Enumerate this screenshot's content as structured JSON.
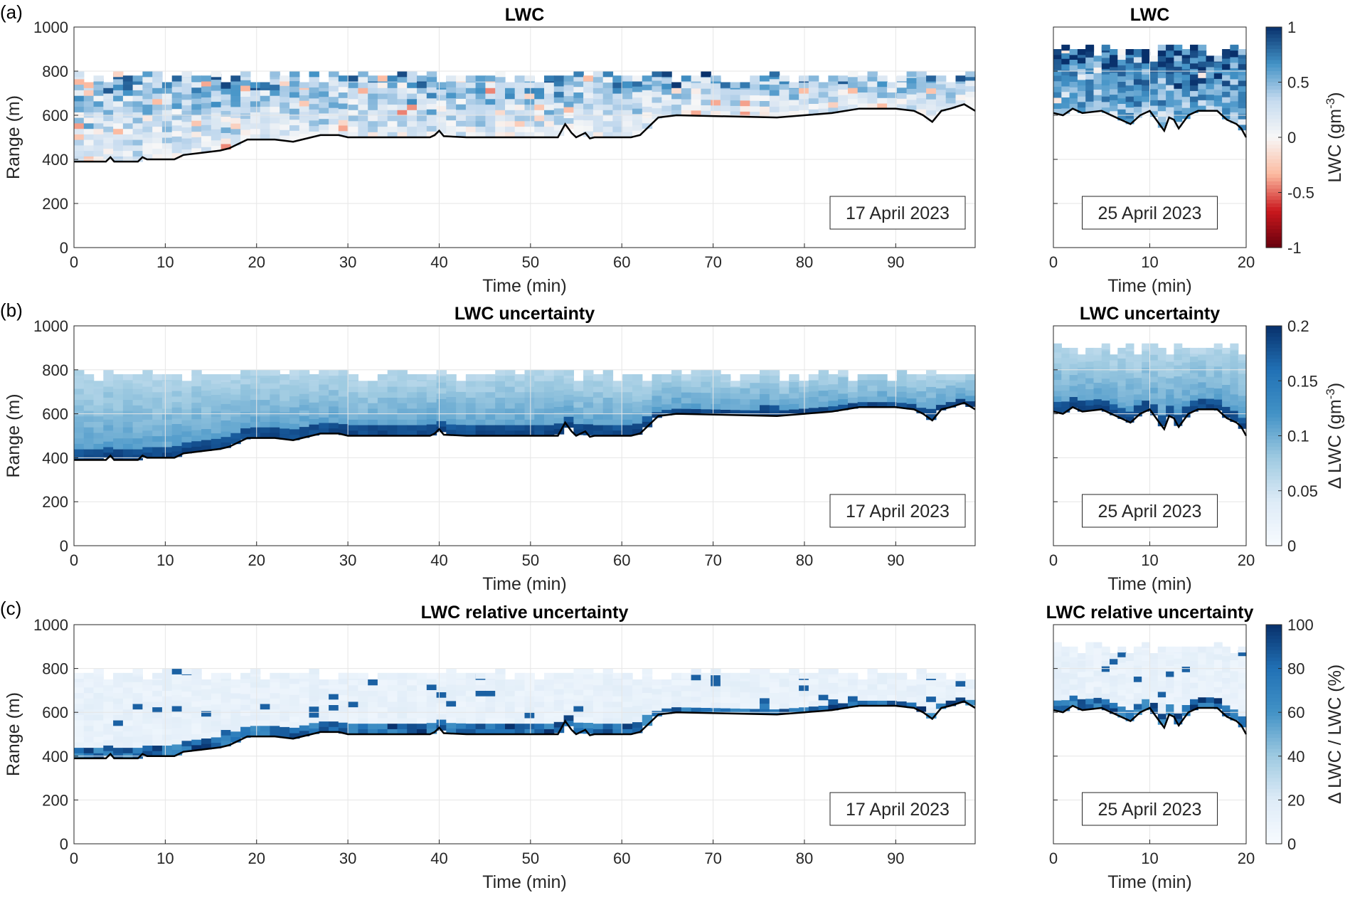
{
  "chart_data": [
    {
      "type": "heatmap",
      "panel": "(a)",
      "title": "LWC",
      "date_label": "17 April 2023",
      "xlabel": "Time (min)",
      "ylabel": "Range (m)",
      "xlim": [
        0,
        98.7
      ],
      "ylim": [
        0,
        1000
      ],
      "xticks": [
        "0",
        "10",
        "20",
        "30",
        "40",
        "50",
        "60",
        "70",
        "80",
        "90"
      ],
      "yticks": [
        "0",
        "200",
        "400",
        "600",
        "800",
        "1000"
      ],
      "colormap": "diverging-red-blue",
      "cloud_base": [
        [
          0,
          390
        ],
        [
          3.5,
          390
        ],
        [
          4,
          410
        ],
        [
          4.4,
          390
        ],
        [
          7,
          390
        ],
        [
          7.5,
          410
        ],
        [
          8,
          400
        ],
        [
          11,
          400
        ],
        [
          12,
          420
        ],
        [
          14,
          430
        ],
        [
          16,
          440
        ],
        [
          17,
          450
        ],
        [
          18,
          470
        ],
        [
          19,
          490
        ],
        [
          22,
          490
        ],
        [
          24,
          480
        ],
        [
          25,
          490
        ],
        [
          27,
          510
        ],
        [
          29,
          510
        ],
        [
          30,
          500
        ],
        [
          37,
          500
        ],
        [
          39,
          500
        ],
        [
          39.5,
          510
        ],
        [
          40,
          530
        ],
        [
          40.5,
          505
        ],
        [
          43,
          500
        ],
        [
          53,
          500
        ],
        [
          53.8,
          560
        ],
        [
          54.5,
          520
        ],
        [
          55,
          500
        ],
        [
          56,
          520
        ],
        [
          56.5,
          495
        ],
        [
          57,
          500
        ],
        [
          61,
          500
        ],
        [
          62,
          510
        ],
        [
          63,
          550
        ],
        [
          64,
          590
        ],
        [
          66,
          600
        ],
        [
          77,
          590
        ],
        [
          80,
          600
        ],
        [
          83,
          610
        ],
        [
          86,
          630
        ],
        [
          90,
          630
        ],
        [
          92,
          620
        ],
        [
          93,
          600
        ],
        [
          94,
          570
        ],
        [
          95,
          620
        ],
        [
          96,
          630
        ],
        [
          97.5,
          650
        ],
        [
          98.7,
          620
        ]
      ]
    },
    {
      "type": "heatmap",
      "panel": "(a)",
      "title": "LWC",
      "date_label": "25 April 2023",
      "xlabel": "Time (min)",
      "ylabel": "",
      "xlim": [
        0,
        20
      ],
      "ylim": [
        0,
        1000
      ],
      "xticks": [
        "0",
        "10",
        "20"
      ],
      "colorbar": {
        "label": "LWC (gm",
        "label_sup": "-3",
        "label_end": ")",
        "range": [
          -1,
          1
        ],
        "ticks": [
          "1",
          "0.5",
          "0",
          "-0.5",
          "-1"
        ]
      },
      "cloud_base": [
        [
          0,
          610
        ],
        [
          1,
          600
        ],
        [
          2,
          630
        ],
        [
          3,
          610
        ],
        [
          5,
          620
        ],
        [
          6,
          600
        ],
        [
          7,
          580
        ],
        [
          8,
          560
        ],
        [
          9,
          600
        ],
        [
          10,
          620
        ],
        [
          11,
          560
        ],
        [
          11.5,
          530
        ],
        [
          12,
          590
        ],
        [
          12.5,
          580
        ],
        [
          13,
          540
        ],
        [
          14,
          600
        ],
        [
          15,
          620
        ],
        [
          17,
          620
        ],
        [
          18,
          580
        ],
        [
          19,
          560
        ],
        [
          19.5,
          540
        ],
        [
          20,
          500
        ]
      ]
    },
    {
      "type": "heatmap",
      "panel": "(b)",
      "title": "LWC uncertainty",
      "date_label": "17 April 2023",
      "xlabel": "Time (min)",
      "ylabel": "Range (m)",
      "xlim": [
        0,
        98.7
      ],
      "ylim": [
        0,
        1000
      ],
      "xticks": [
        "0",
        "10",
        "20",
        "30",
        "40",
        "50",
        "60",
        "70",
        "80",
        "90"
      ],
      "yticks": [
        "0",
        "200",
        "400",
        "600",
        "800",
        "1000"
      ],
      "colormap": "sequential-blue"
    },
    {
      "type": "heatmap",
      "panel": "(b)",
      "title": "LWC uncertainty",
      "date_label": "25 April 2023",
      "xlabel": "Time (min)",
      "ylabel": "",
      "xlim": [
        0,
        20
      ],
      "ylim": [
        0,
        1000
      ],
      "xticks": [
        "0",
        "10",
        "20"
      ],
      "colorbar": {
        "label": "Δ LWC (gm",
        "label_sup": "-3",
        "label_end": ")",
        "range": [
          0,
          0.2
        ],
        "ticks": [
          "0.2",
          "0.15",
          "0.1",
          "0.05",
          "0"
        ]
      }
    },
    {
      "type": "heatmap",
      "panel": "(c)",
      "title": "LWC relative uncertainty",
      "date_label": "17 April 2023",
      "xlabel": "Time (min)",
      "ylabel": "Range (m)",
      "xlim": [
        0,
        98.7
      ],
      "ylim": [
        0,
        1000
      ],
      "xticks": [
        "0",
        "10",
        "20",
        "30",
        "40",
        "50",
        "60",
        "70",
        "80",
        "90"
      ],
      "yticks": [
        "0",
        "200",
        "400",
        "600",
        "800",
        "1000"
      ],
      "colormap": "sequential-blue"
    },
    {
      "type": "heatmap",
      "panel": "(c)",
      "title": "LWC relative uncertainty",
      "date_label": "25 April 2023",
      "xlabel": "Time (min)",
      "ylabel": "",
      "xlim": [
        0,
        20
      ],
      "ylim": [
        0,
        1000
      ],
      "xticks": [
        "0",
        "10",
        "20"
      ],
      "colorbar": {
        "label": "Δ LWC / LWC (%)",
        "label_sup": "",
        "label_end": "",
        "range": [
          0,
          100
        ],
        "ticks": [
          "100",
          "80",
          "60",
          "40",
          "20",
          "0"
        ]
      }
    }
  ],
  "panel_letters": [
    "(a)",
    "(b)",
    "(c)"
  ],
  "colors": {
    "dark_blue": "#08306b",
    "mid_blue": "#2171b5",
    "light_blue": "#9ecae1",
    "pale_blue": "#deebf7",
    "white": "#f7fbff",
    "dark_red": "#a50f15",
    "cloud_base_line": "#000000",
    "grid": "#e6e6e6"
  }
}
